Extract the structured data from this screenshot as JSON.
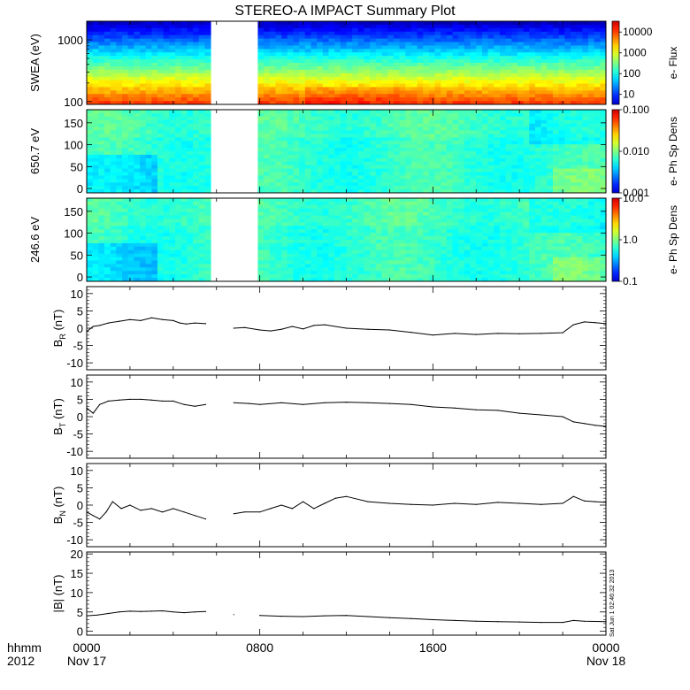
{
  "title": "STEREO-A IMPACT Summary Plot",
  "timestamp": "Sat Jun 1 02:46:32 2013",
  "time_axis": {
    "corner_labels": [
      "hhmm",
      "2012"
    ],
    "ticks": [
      {
        "time": "0000",
        "date": "Nov 17"
      },
      {
        "time": "0800",
        "date": ""
      },
      {
        "time": "1600",
        "date": ""
      },
      {
        "time": "0000",
        "date": "Nov 18"
      }
    ]
  },
  "colors": {
    "background": "#ffffff",
    "axes": "#000000",
    "trace": "#000000"
  },
  "chart_data": [
    {
      "type": "heatmap",
      "panel": "swea",
      "ylabel": "SWEA (eV)",
      "yscale": "log",
      "ylim": [
        90,
        2000
      ],
      "yticks": [
        "100",
        "1000"
      ],
      "colorbar_label": "e- Flux",
      "colorbar_scale": "log",
      "colorbar_ticks": [
        "10",
        "100",
        "1000",
        "10000"
      ],
      "data_gap_hours": [
        5.6,
        7.8
      ],
      "description_rows": "energy spectrum: high flux (red/orange) at ~100 eV decreasing to blue near 1500 eV"
    },
    {
      "type": "heatmap",
      "panel": "pad-650",
      "ylabel": "650.7 eV",
      "ylim": [
        -10,
        180
      ],
      "yticks": [
        "0",
        "50",
        "100",
        "150"
      ],
      "colorbar_label": "e- Ph Sp Dens",
      "colorbar_scale": "log",
      "colorbar_ticks": [
        "0.001",
        "0.010",
        "0.100"
      ],
      "data_gap_hours": [
        5.6,
        7.8
      ]
    },
    {
      "type": "heatmap",
      "panel": "pad-246",
      "ylabel": "246.6 eV",
      "ylim": [
        -10,
        180
      ],
      "yticks": [
        "0",
        "50",
        "100",
        "150"
      ],
      "colorbar_label": "e- Ph Sp Dens",
      "colorbar_scale": "log",
      "colorbar_ticks": [
        "0.1",
        "1.0",
        "10.0"
      ],
      "data_gap_hours": [
        5.6,
        7.8
      ]
    },
    {
      "type": "line",
      "panel": "br",
      "ylabel_main": "B",
      "ylabel_sub": "R",
      "ylabel_unit": "(nT)",
      "ylim": [
        -12,
        12
      ],
      "yticks": [
        "-10",
        "-5",
        "0",
        "5",
        "10"
      ],
      "x": [
        0,
        0.3,
        0.6,
        1.0,
        1.5,
        2.0,
        2.5,
        3.0,
        3.5,
        4.0,
        4.3,
        4.6,
        5.0,
        5.5,
        6.8,
        7.3,
        8.0,
        8.5,
        9.0,
        9.5,
        10.0,
        10.5,
        11.0,
        12.0,
        13.0,
        14.0,
        15.0,
        16.0,
        17.0,
        18.0,
        19.0,
        20.0,
        21.0,
        21.5,
        22.0,
        22.5,
        23.0,
        23.5,
        24.0
      ],
      "y": [
        -1,
        0.5,
        0.8,
        1.5,
        2,
        2.5,
        2.2,
        3,
        2.5,
        2.2,
        1.5,
        1.2,
        1.5,
        1.3,
        0,
        0.2,
        -0.5,
        -0.8,
        -0.3,
        0.5,
        -0.2,
        0.8,
        1,
        0,
        -0.3,
        -0.5,
        -1.2,
        -2,
        -1.5,
        -1.8,
        -1.5,
        -1.6,
        -1.5,
        -1.4,
        -1.3,
        1,
        1.8,
        1.6,
        1.3
      ]
    },
    {
      "type": "line",
      "panel": "bt",
      "ylabel_main": "B",
      "ylabel_sub": "T",
      "ylabel_unit": "(nT)",
      "ylim": [
        -12,
        12
      ],
      "yticks": [
        "-10",
        "-5",
        "0",
        "5",
        "10"
      ],
      "x": [
        0,
        0.3,
        0.6,
        1.0,
        1.5,
        2.0,
        2.5,
        3.0,
        3.5,
        4.0,
        4.5,
        5.0,
        5.5,
        6.8,
        7.5,
        8.0,
        9.0,
        10.0,
        11.0,
        12.0,
        13.0,
        14.0,
        15.0,
        16.0,
        17.0,
        18.0,
        19.0,
        20.0,
        21.0,
        22.0,
        22.5,
        23.0,
        23.5,
        24.0
      ],
      "y": [
        2.5,
        1,
        3.5,
        4.5,
        4.8,
        5,
        5,
        4.8,
        4.5,
        4.5,
        3.5,
        3,
        3.5,
        4,
        3.8,
        3.5,
        4,
        3.5,
        4,
        4.2,
        4,
        3.8,
        3.5,
        2.8,
        2.5,
        2,
        1.8,
        1,
        0.5,
        0,
        -1.5,
        -2,
        -2.5,
        -2.8
      ]
    },
    {
      "type": "line",
      "panel": "bn",
      "ylabel_main": "B",
      "ylabel_sub": "N",
      "ylabel_unit": "(nT)",
      "ylim": [
        -12,
        12
      ],
      "yticks": [
        "-10",
        "-5",
        "0",
        "5",
        "10"
      ],
      "x": [
        0,
        0.3,
        0.6,
        0.9,
        1.2,
        1.6,
        2.0,
        2.5,
        3.0,
        3.5,
        4.0,
        4.5,
        5.0,
        5.5,
        6.8,
        7.3,
        8.0,
        8.5,
        9.0,
        9.5,
        10.0,
        10.5,
        11.0,
        11.5,
        12.0,
        13.0,
        14.0,
        15.0,
        16.0,
        17.0,
        18.0,
        19.0,
        20.0,
        21.0,
        22.0,
        22.5,
        23.0,
        23.5,
        24.0
      ],
      "y": [
        -2,
        -3,
        -4,
        -2,
        1,
        -1,
        0,
        -1.5,
        -1,
        -2,
        -1,
        -2,
        -3,
        -4,
        -2.5,
        -2,
        -2,
        -1,
        0,
        -1,
        1,
        -1,
        0.5,
        2,
        2.5,
        1,
        0.5,
        0.2,
        0,
        0.5,
        0.2,
        0.8,
        0.5,
        0.2,
        0.5,
        2.5,
        1.2,
        1,
        0.8
      ]
    },
    {
      "type": "line",
      "panel": "bmag",
      "ylabel": "|B| (nT)",
      "ylim": [
        -1,
        20.5
      ],
      "yticks": [
        "0",
        "5",
        "10",
        "15",
        "20"
      ],
      "x": [
        0,
        0.5,
        1.0,
        1.5,
        2.0,
        2.5,
        3.0,
        3.5,
        4.0,
        4.5,
        5.0,
        5.5,
        6.8,
        8.0,
        9.0,
        10.0,
        11.0,
        12.0,
        13.0,
        14.0,
        15.0,
        16.0,
        17.0,
        18.0,
        19.0,
        20.0,
        21.0,
        22.0,
        22.5,
        23.0,
        24.0
      ],
      "y": [
        4,
        4.2,
        4.6,
        5,
        5.2,
        5.1,
        5.2,
        5.3,
        5.0,
        4.8,
        5.0,
        5.1,
        4.3,
        4.1,
        3.9,
        3.8,
        4.0,
        4.1,
        3.8,
        3.5,
        3.3,
        3.0,
        2.8,
        2.6,
        2.5,
        2.4,
        2.3,
        2.3,
        2.8,
        2.6,
        2.5
      ]
    }
  ]
}
